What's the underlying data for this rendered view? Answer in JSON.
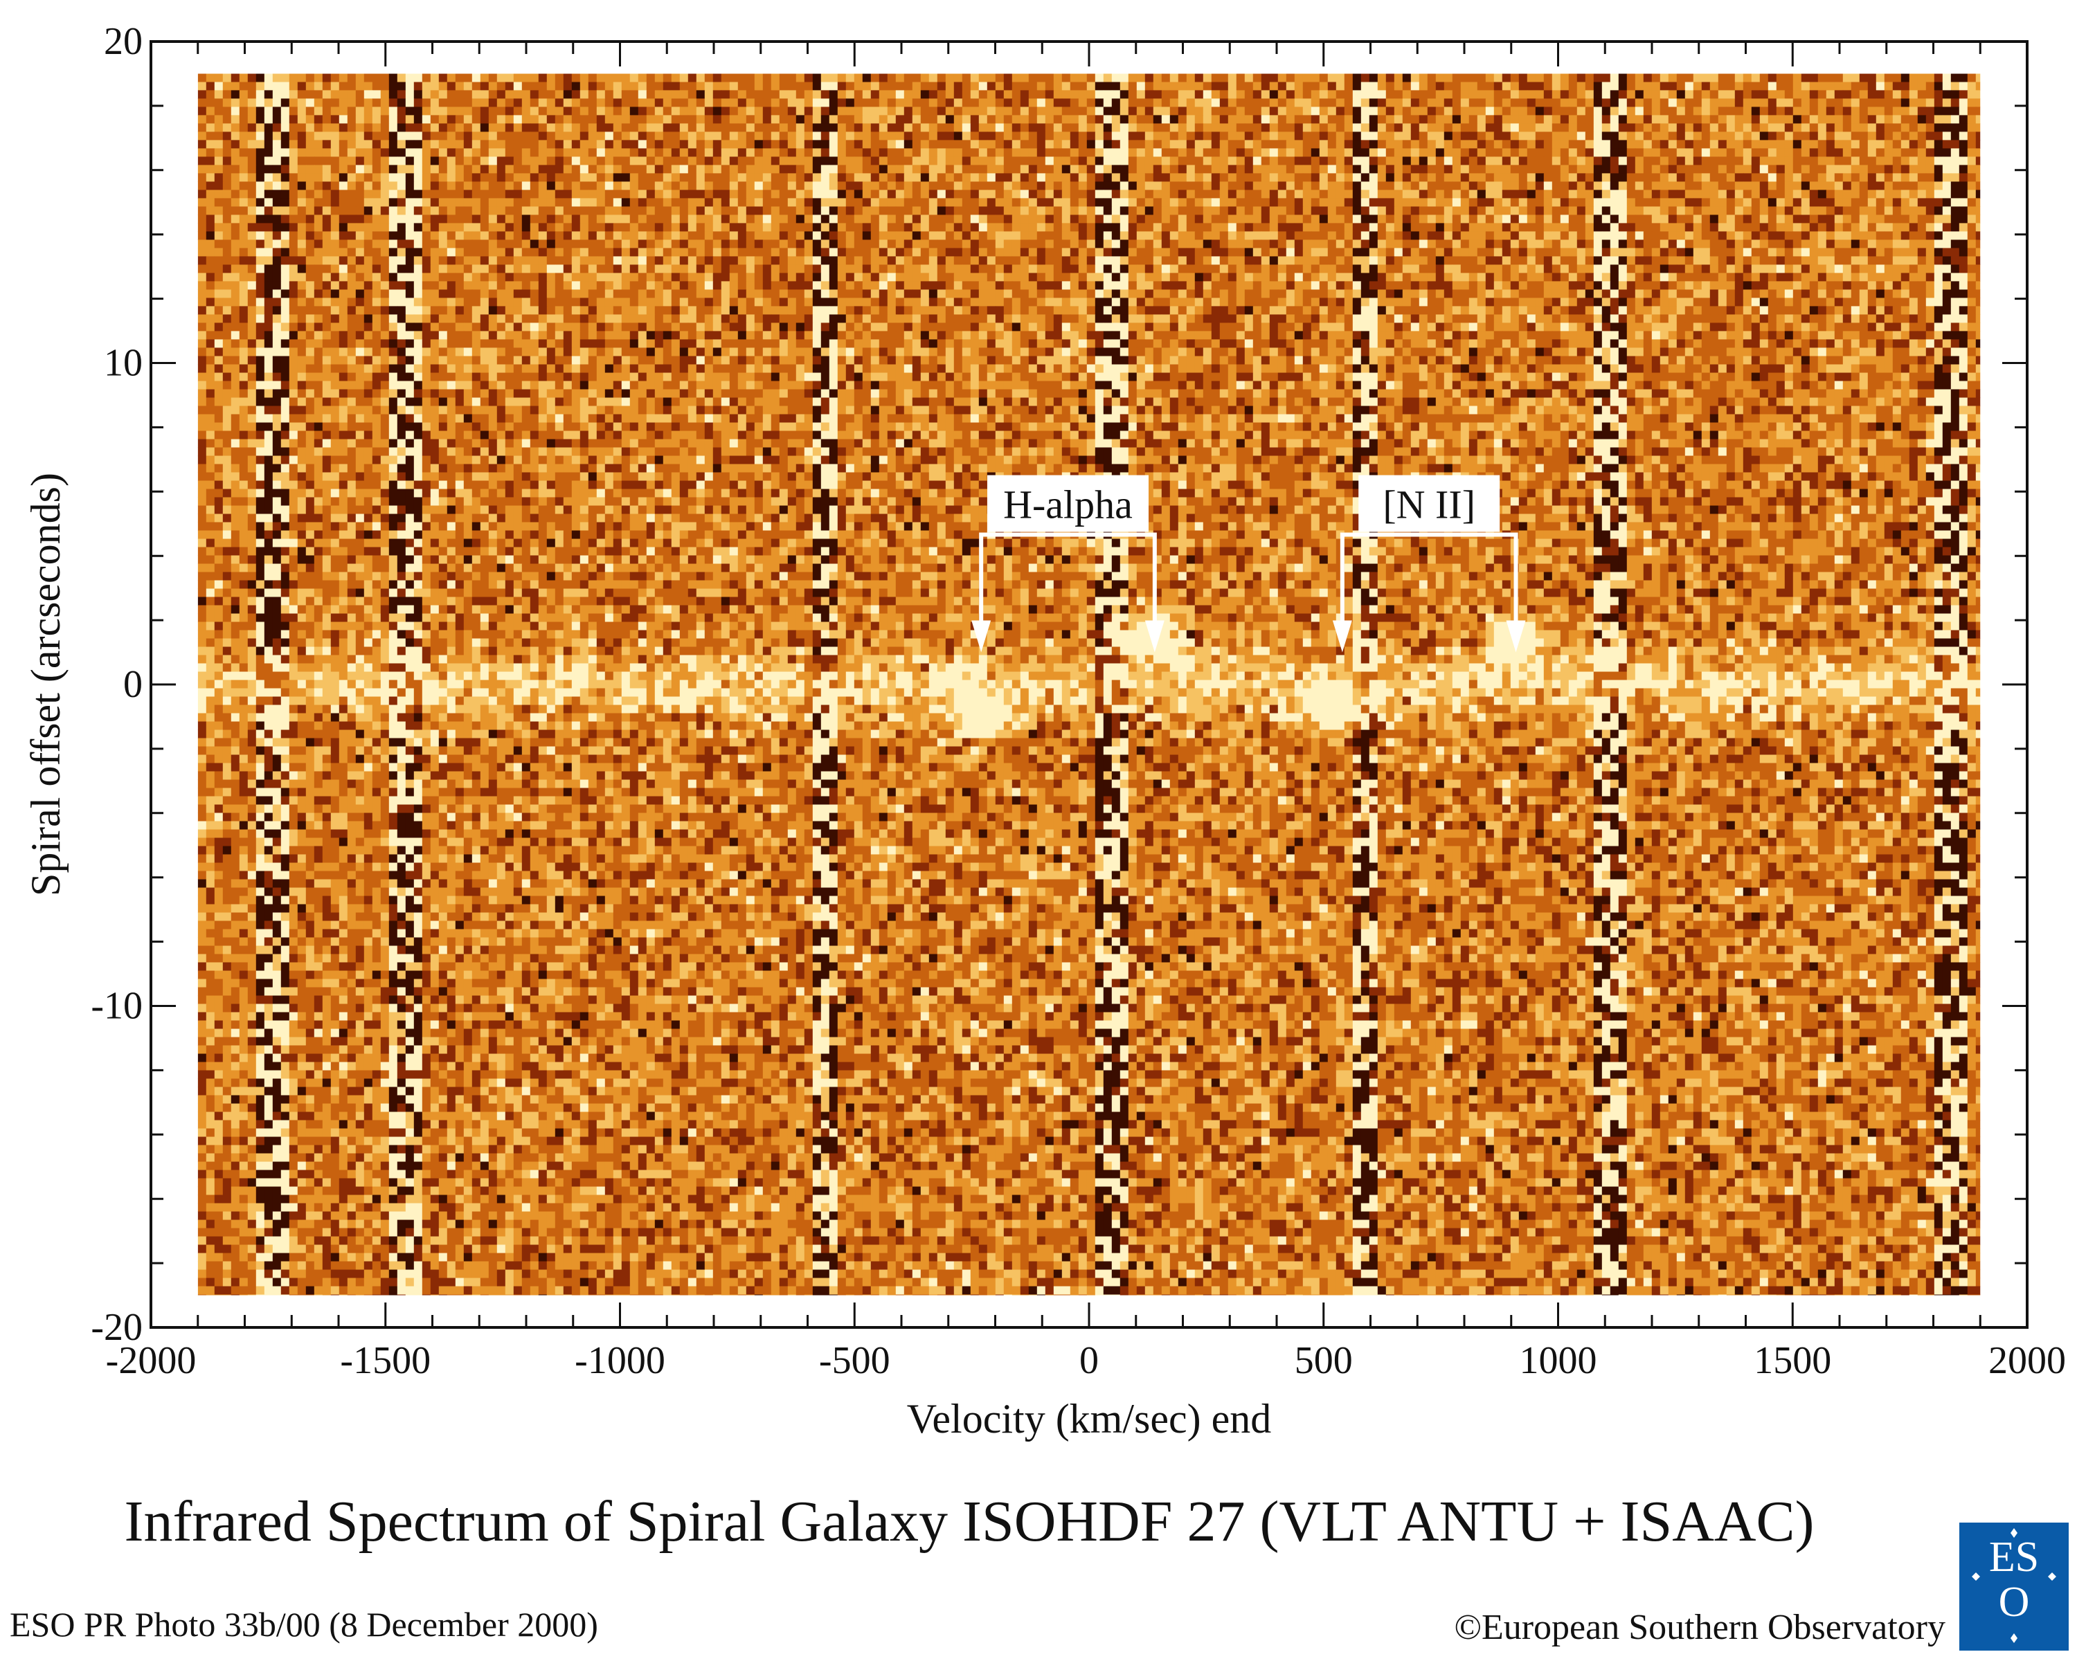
{
  "chart_data": {
    "type": "heatmap",
    "title": "Infrared Spectrum of Spiral Galaxy ISOHDF 27  (VLT ANTU + ISAAC)",
    "xlabel": "Velocity (km/sec) end",
    "ylabel": "Spiral offset (arcseconds)",
    "xlim": [
      -2000,
      2000
    ],
    "ylim": [
      -20,
      20
    ],
    "xticks": [
      -2000,
      -1500,
      -1000,
      -500,
      0,
      500,
      1000,
      1500,
      2000
    ],
    "yticks": [
      -20,
      -10,
      0,
      10,
      20
    ],
    "data_extent": {
      "x": [
        -1900,
        1900
      ],
      "y": [
        -19,
        19
      ]
    },
    "colormap": [
      "#3a0d00",
      "#8a2a05",
      "#c8620f",
      "#e7942a",
      "#f6c262",
      "#fff3c4"
    ],
    "sky_lines_x": [
      -1740,
      -1460,
      -560,
      45,
      590,
      1110,
      1840
    ],
    "continuum_y": 0,
    "bright_spots": [
      {
        "x": -230,
        "y": -1
      },
      {
        "x": 140,
        "y": 1.5
      },
      {
        "x": 530,
        "y": -0.8
      },
      {
        "x": 910,
        "y": 1.3
      }
    ],
    "annotations": [
      {
        "text": "H-alpha",
        "arrows_x": [
          -230,
          140
        ],
        "arrow_tip_y": 1
      },
      {
        "text": "[N II]",
        "arrows_x": [
          540,
          910
        ],
        "arrow_tip_y": 1
      }
    ]
  },
  "footer": {
    "photo_id": "ESO PR Photo 33b/00 (8 December 2000)",
    "credit": "©European Southern Observatory",
    "logo_text": "ESO",
    "logo_color": "#0a5ba8"
  }
}
